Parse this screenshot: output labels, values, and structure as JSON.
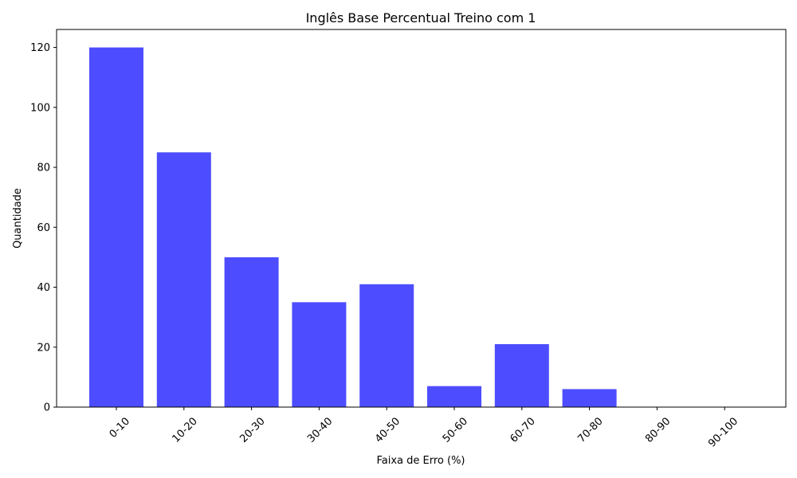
{
  "chart_data": {
    "type": "bar",
    "title": "Inglês Base Percentual Treino com 1",
    "xlabel": "Faixa de Erro (%)",
    "ylabel": "Quantidade",
    "categories": [
      "0-10",
      "10-20",
      "20-30",
      "30-40",
      "40-50",
      "50-60",
      "60-70",
      "70-80",
      "80-90",
      "90-100"
    ],
    "values": [
      120,
      85,
      50,
      35,
      41,
      7,
      21,
      6,
      0,
      0
    ],
    "ylim": [
      0,
      126
    ],
    "yticks": [
      0,
      20,
      40,
      60,
      80,
      100,
      120
    ],
    "grid": false,
    "bar_color": "#4d4dff",
    "axis_color": "#000000"
  }
}
